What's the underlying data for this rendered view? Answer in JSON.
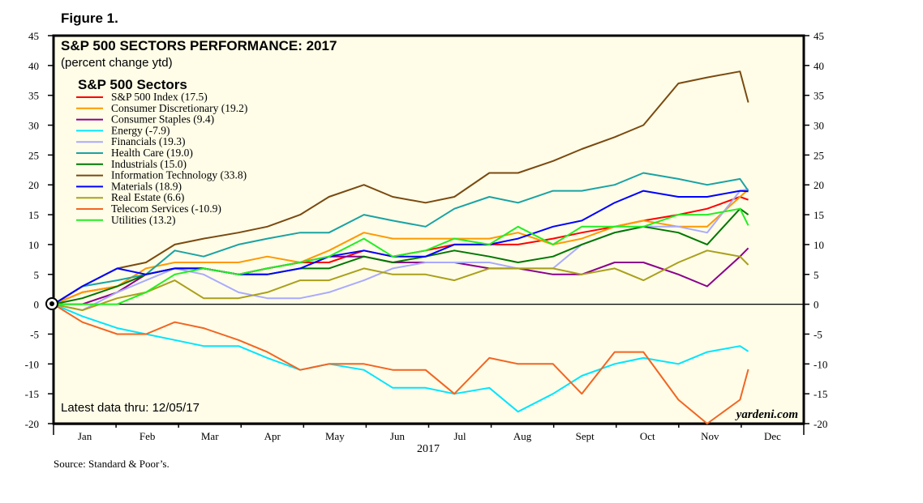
{
  "figure_label": "Figure 1.",
  "source": "Source: Standard & Poor’s.",
  "watermark": "yardeni.com",
  "chart_data": {
    "type": "line",
    "title": "S&P 500 SECTORS PERFORMANCE: 2017",
    "subtitle": "(percent change ytd)",
    "legend_title": "S&P 500 Sectors",
    "legend_placement": "top-left",
    "note": "Latest data thru: 12/05/17",
    "xlabel": "2017",
    "ylabel": "",
    "ylim": [
      -20,
      45
    ],
    "yticks": [
      45,
      40,
      35,
      30,
      25,
      20,
      15,
      10,
      5,
      0,
      -5,
      -10,
      -15,
      -20
    ],
    "xlim": [
      "2017-01-01",
      "2017-12-31"
    ],
    "xtick_labels": [
      "Jan",
      "Feb",
      "Mar",
      "Apr",
      "May",
      "Jun",
      "Jul",
      "Aug",
      "Sept",
      "Oct",
      "Nov",
      "Dec"
    ],
    "zero_line": true,
    "background": "#fffde8",
    "x": [
      "2017-01-01",
      "2017-01-15",
      "2017-02-01",
      "2017-02-15",
      "2017-03-01",
      "2017-03-15",
      "2017-04-01",
      "2017-04-15",
      "2017-05-01",
      "2017-05-15",
      "2017-06-01",
      "2017-06-15",
      "2017-07-01",
      "2017-07-15",
      "2017-08-01",
      "2017-08-15",
      "2017-09-01",
      "2017-09-15",
      "2017-10-01",
      "2017-10-15",
      "2017-11-01",
      "2017-11-15",
      "2017-12-01",
      "2017-12-05"
    ],
    "series": [
      {
        "name": "S&P 500 Index (17.5)",
        "color": "#ff0000",
        "values": [
          0,
          2,
          3,
          5,
          6,
          6,
          5,
          6,
          7,
          7,
          9,
          8,
          9,
          10,
          10,
          10,
          11,
          12,
          13,
          14,
          15,
          16,
          18,
          17.5
        ]
      },
      {
        "name": "Consumer Discretionary (19.2)",
        "color": "#ff9900",
        "values": [
          0,
          2,
          3,
          6,
          7,
          7,
          7,
          8,
          7,
          9,
          12,
          11,
          11,
          11,
          11,
          12,
          10,
          11,
          13,
          14,
          13,
          13,
          18,
          19.2
        ]
      },
      {
        "name": "Consumer Staples (9.4)",
        "color": "#8b008b",
        "values": [
          0,
          0,
          2,
          5,
          6,
          6,
          5,
          6,
          7,
          8,
          8,
          7,
          7,
          7,
          6,
          6,
          5,
          5,
          7,
          7,
          5,
          3,
          8,
          9.4
        ]
      },
      {
        "name": "Energy (-7.9)",
        "color": "#00e5ff",
        "values": [
          0,
          -2,
          -4,
          -5,
          -6,
          -7,
          -7,
          -9,
          -11,
          -10,
          -11,
          -14,
          -14,
          -15,
          -14,
          -18,
          -15,
          -12,
          -10,
          -9,
          -10,
          -8,
          -7,
          -7.9
        ]
      },
      {
        "name": "Financials (19.3)",
        "color": "#aaaaff",
        "values": [
          0,
          -1,
          2,
          4,
          6,
          5,
          2,
          1,
          1,
          2,
          4,
          6,
          7,
          7,
          7,
          6,
          6,
          10,
          12,
          13,
          13,
          12,
          19,
          19.3
        ]
      },
      {
        "name": "Health Care (19.0)",
        "color": "#1aa3a3",
        "values": [
          0,
          3,
          4,
          5,
          9,
          8,
          10,
          11,
          12,
          12,
          15,
          14,
          13,
          16,
          18,
          17,
          19,
          19,
          20,
          22,
          21,
          20,
          21,
          19.0
        ]
      },
      {
        "name": "Industrials (15.0)",
        "color": "#007700",
        "values": [
          0,
          1,
          3,
          5,
          6,
          6,
          5,
          5,
          6,
          6,
          8,
          7,
          8,
          9,
          8,
          7,
          8,
          10,
          12,
          13,
          12,
          10,
          16,
          15.0
        ]
      },
      {
        "name": "Information Technology (33.8)",
        "color": "#7a4a10",
        "values": [
          0,
          3,
          6,
          7,
          10,
          11,
          12,
          13,
          15,
          18,
          20,
          18,
          17,
          18,
          22,
          22,
          24,
          26,
          28,
          30,
          37,
          38,
          39,
          33.8
        ]
      },
      {
        "name": "Materials (18.9)",
        "color": "#0000ff",
        "values": [
          0,
          3,
          6,
          5,
          6,
          6,
          5,
          5,
          6,
          8,
          9,
          8,
          8,
          10,
          10,
          11,
          13,
          14,
          17,
          19,
          18,
          18,
          19,
          18.9
        ]
      },
      {
        "name": "Real Estate (6.6)",
        "color": "#aaa01a",
        "values": [
          0,
          -1,
          1,
          2,
          4,
          1,
          1,
          2,
          4,
          4,
          6,
          5,
          5,
          4,
          6,
          6,
          6,
          5,
          6,
          4,
          7,
          9,
          8,
          6.6
        ]
      },
      {
        "name": "Telecom Services (-10.9)",
        "color": "#f26522",
        "values": [
          0,
          -3,
          -5,
          -5,
          -3,
          -4,
          -6,
          -8,
          -11,
          -10,
          -10,
          -11,
          -11,
          -15,
          -9,
          -10,
          -10,
          -15,
          -8,
          -8,
          -16,
          -20,
          -16,
          -10.9
        ]
      },
      {
        "name": "Utilities (13.2)",
        "color": "#22ee22",
        "values": [
          0,
          0,
          0,
          2,
          5,
          6,
          5,
          6,
          7,
          8,
          11,
          8,
          9,
          11,
          10,
          13,
          10,
          13,
          13,
          13,
          15,
          15,
          16,
          13.2
        ]
      }
    ]
  }
}
